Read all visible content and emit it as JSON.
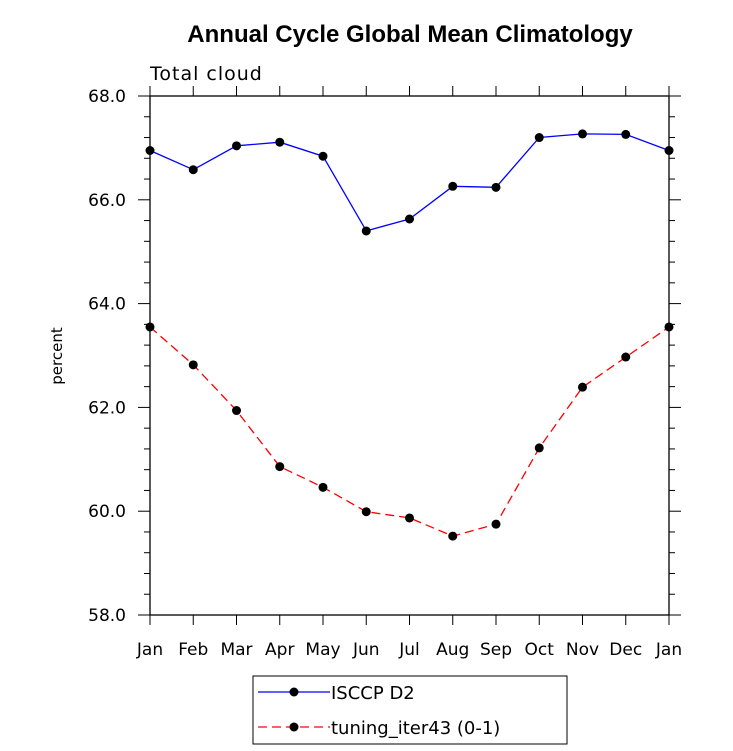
{
  "chart_data": {
    "type": "line",
    "title": "Annual Cycle Global Mean Climatology",
    "subtitle": "Total cloud",
    "ylabel": "percent",
    "xlabel": "",
    "categories": [
      "Jan",
      "Feb",
      "Mar",
      "Apr",
      "May",
      "Jun",
      "Jul",
      "Aug",
      "Sep",
      "Oct",
      "Nov",
      "Dec",
      "Jan"
    ],
    "ylim": [
      58.0,
      68.0
    ],
    "yticks": [
      "58.0",
      "60.0",
      "62.0",
      "64.0",
      "66.0",
      "68.0"
    ],
    "grid": false,
    "legend_position": "bottom-center",
    "series": [
      {
        "name": "ISCCP D2",
        "color": "#0000ff",
        "line_style": "solid",
        "marker": "filled-circle",
        "values": [
          66.95,
          66.58,
          67.04,
          67.11,
          66.84,
          65.4,
          65.63,
          66.26,
          66.24,
          67.2,
          67.27,
          67.26,
          66.95
        ]
      },
      {
        "name": "tuning_iter43 (0-1)",
        "color": "#ff0000",
        "line_style": "dashed",
        "marker": "filled-circle",
        "values": [
          63.55,
          62.82,
          61.94,
          60.86,
          60.46,
          59.99,
          59.87,
          59.52,
          59.75,
          61.22,
          62.39,
          62.97,
          63.55
        ]
      }
    ]
  }
}
